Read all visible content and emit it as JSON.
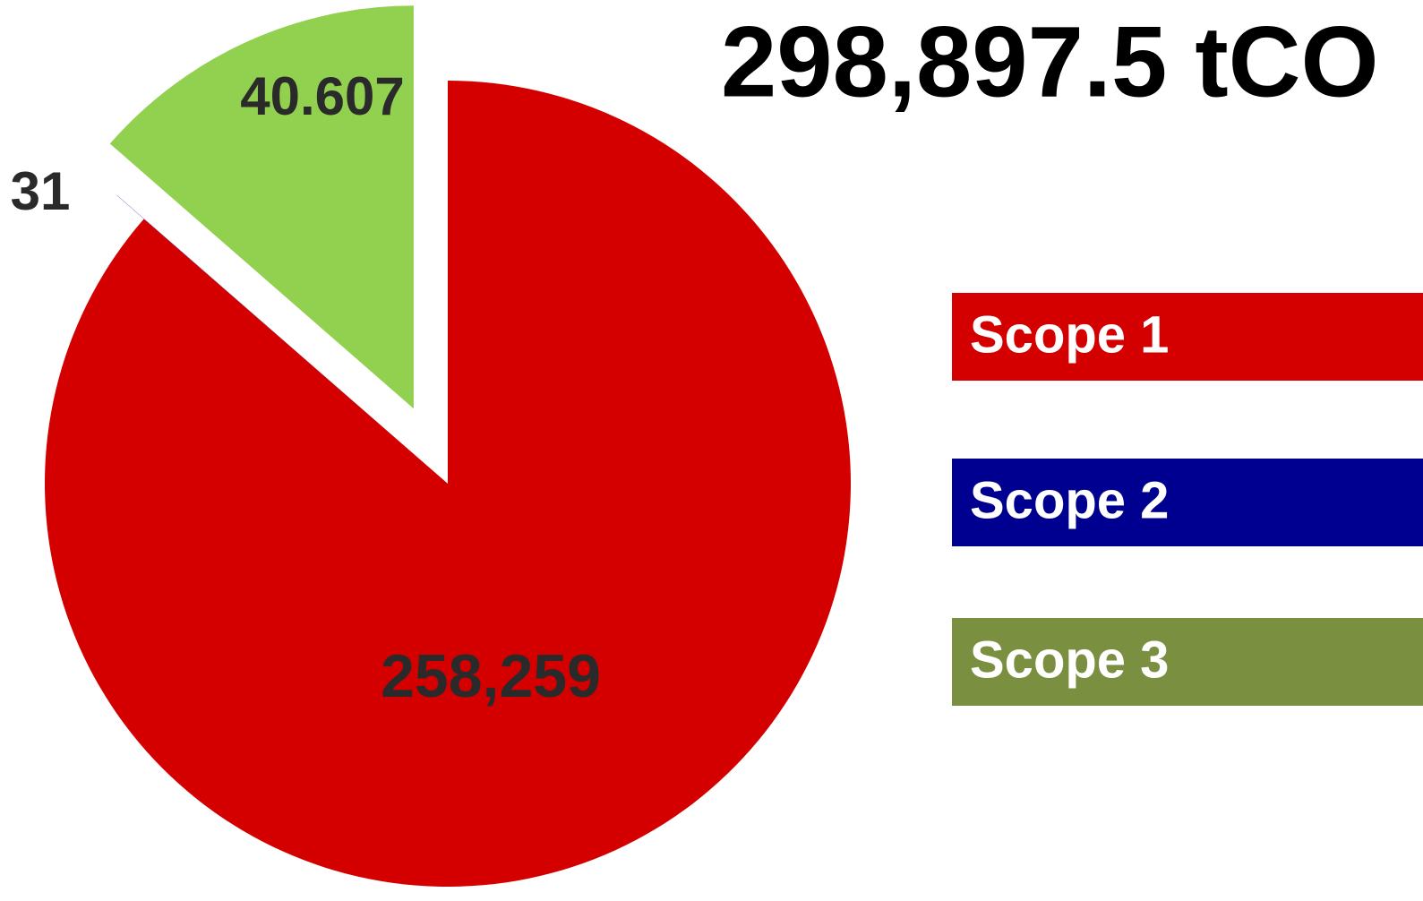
{
  "chart_data": {
    "type": "pie",
    "title": "298,897.5 tCO",
    "categories": [
      "Scope 1",
      "Scope 2",
      "Scope 3"
    ],
    "values": [
      258259,
      31,
      40607
    ],
    "value_labels": [
      "258,259",
      "31",
      "40.607"
    ],
    "colors": [
      "#d40000",
      "#000090",
      "#92d050"
    ],
    "legend_colors": [
      "#d40000",
      "#000090",
      "#7a9040"
    ]
  }
}
